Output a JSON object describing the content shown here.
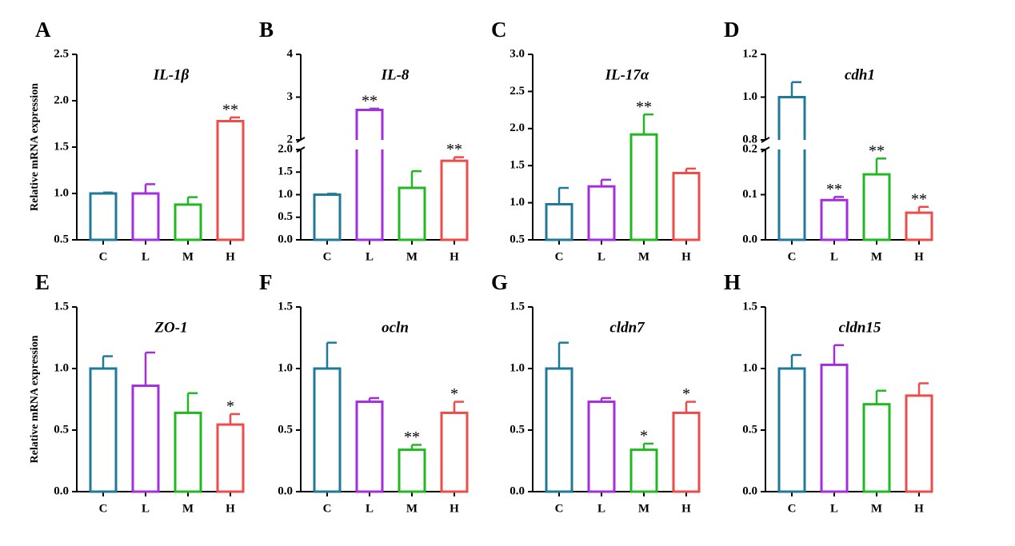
{
  "chart_data": [
    {
      "type": "bar",
      "panel": "A",
      "title": "IL-1β",
      "ylabel": "Relative mRNA expression",
      "categories": [
        "C",
        "L",
        "M",
        "H"
      ],
      "values": [
        1.0,
        1.0,
        0.88,
        1.78
      ],
      "errors": [
        0.01,
        0.1,
        0.08,
        0.04
      ],
      "significance": [
        null,
        null,
        null,
        "**"
      ],
      "colors": [
        "#1f7a99",
        "#a22ee0",
        "#22b822",
        "#ee4b4b"
      ],
      "ylim": [
        0.5,
        2.5
      ],
      "yticks": [
        0.5,
        {
          "value": 1,
          "label": "1.0"
        },
        1.5,
        {
          "value": 2,
          "label": "2.0"
        },
        2.5
      ]
    },
    {
      "type": "bar",
      "panel": "B",
      "title": "IL-8",
      "categories": [
        "C",
        "L",
        "M",
        "H"
      ],
      "values": [
        1.0,
        2.7,
        1.15,
        1.75
      ],
      "errors": [
        0.02,
        0.03,
        0.37,
        0.08
      ],
      "significance": [
        null,
        "**",
        null,
        "**"
      ],
      "colors": [
        "#1f7a99",
        "#a22ee0",
        "#22b822",
        "#ee4b4b"
      ],
      "segments": [
        {
          "ylim": [
            0,
            2
          ],
          "yticks": [
            {
              "value": 0,
              "label": "0.0"
            },
            0.5,
            {
              "value": 1,
              "label": "1.0"
            },
            1.5,
            {
              "value": 2,
              "label": "2.0"
            }
          ]
        },
        {
          "ylim": [
            2,
            4
          ],
          "yticks": [
            2,
            3,
            4
          ]
        }
      ]
    },
    {
      "type": "bar",
      "panel": "C",
      "title": "IL-17α",
      "categories": [
        "C",
        "L",
        "M",
        "H"
      ],
      "values": [
        0.98,
        1.22,
        1.92,
        1.4
      ],
      "errors": [
        0.22,
        0.09,
        0.27,
        0.06
      ],
      "significance": [
        null,
        null,
        "**",
        null
      ],
      "colors": [
        "#1f7a99",
        "#a22ee0",
        "#22b822",
        "#ee4b4b"
      ],
      "ylim": [
        0.5,
        3.0
      ],
      "yticks": [
        0.5,
        {
          "value": 1,
          "label": "1.0"
        },
        1.5,
        {
          "value": 2,
          "label": "2.0"
        },
        2.5,
        {
          "value": 3,
          "label": "3.0"
        }
      ]
    },
    {
      "type": "bar",
      "panel": "D",
      "title": "cdh1",
      "categories": [
        "C",
        "L",
        "M",
        "H"
      ],
      "values": [
        1.0,
        0.088,
        0.145,
        0.06
      ],
      "errors": [
        0.07,
        0.007,
        0.035,
        0.013
      ],
      "significance": [
        null,
        "**",
        "**",
        "**"
      ],
      "colors": [
        "#1f7a99",
        "#a22ee0",
        "#22b822",
        "#ee4b4b"
      ],
      "segments": [
        {
          "ylim": [
            0,
            0.2
          ],
          "yticks": [
            {
              "value": 0,
              "label": "0.0"
            },
            0.1,
            0.2
          ]
        },
        {
          "ylim": [
            0.8,
            1.2
          ],
          "yticks": [
            0.8,
            {
              "value": 1,
              "label": "1.0"
            },
            1.2
          ]
        }
      ]
    },
    {
      "type": "bar",
      "panel": "E",
      "title": "ZO-1",
      "ylabel": "Relative mRNA expression",
      "categories": [
        "C",
        "L",
        "M",
        "H"
      ],
      "values": [
        1.0,
        0.86,
        0.64,
        0.545
      ],
      "errors": [
        0.1,
        0.27,
        0.16,
        0.085
      ],
      "significance": [
        null,
        null,
        null,
        "*"
      ],
      "colors": [
        "#1f7a99",
        "#a22ee0",
        "#22b822",
        "#ee4b4b"
      ],
      "ylim": [
        0,
        1.5
      ],
      "yticks": [
        {
          "value": 0,
          "label": "0.0"
        },
        0.5,
        {
          "value": 1,
          "label": "1.0"
        },
        1.5
      ]
    },
    {
      "type": "bar",
      "panel": "F",
      "title": "ocln",
      "categories": [
        "C",
        "L",
        "M",
        "H"
      ],
      "values": [
        1.0,
        0.73,
        0.34,
        0.64
      ],
      "errors": [
        0.21,
        0.03,
        0.04,
        0.09
      ],
      "significance": [
        null,
        null,
        "**",
        "*"
      ],
      "colors": [
        "#1f7a99",
        "#a22ee0",
        "#22b822",
        "#ee4b4b"
      ],
      "ylim": [
        0,
        1.5
      ],
      "yticks": [
        {
          "value": 0,
          "label": "0.0"
        },
        0.5,
        {
          "value": 1,
          "label": "1.0"
        },
        1.5
      ]
    },
    {
      "type": "bar",
      "panel": "G",
      "title": "cldn7",
      "categories": [
        "C",
        "L",
        "M",
        "H"
      ],
      "values": [
        1.0,
        0.73,
        0.34,
        0.64
      ],
      "errors": [
        0.21,
        0.03,
        0.05,
        0.09
      ],
      "significance": [
        null,
        null,
        "*",
        "*"
      ],
      "colors": [
        "#1f7a99",
        "#a22ee0",
        "#22b822",
        "#ee4b4b"
      ],
      "ylim": [
        0,
        1.5
      ],
      "yticks": [
        {
          "value": 0,
          "label": "0.0"
        },
        0.5,
        {
          "value": 1,
          "label": "1.0"
        },
        1.5
      ]
    },
    {
      "type": "bar",
      "panel": "H",
      "title": "cldn15",
      "categories": [
        "C",
        "L",
        "M",
        "H"
      ],
      "values": [
        1.0,
        1.03,
        0.71,
        0.78
      ],
      "errors": [
        0.11,
        0.16,
        0.11,
        0.1
      ],
      "significance": [
        null,
        null,
        null,
        null
      ],
      "colors": [
        "#1f7a99",
        "#a22ee0",
        "#22b822",
        "#ee4b4b"
      ],
      "ylim": [
        0,
        1.5
      ],
      "yticks": [
        {
          "value": 0,
          "label": "0.0"
        },
        0.5,
        {
          "value": 1,
          "label": "1.0"
        },
        1.5
      ]
    }
  ]
}
